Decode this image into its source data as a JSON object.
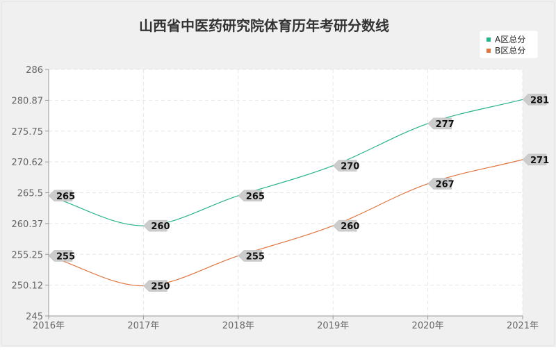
{
  "chart_data": {
    "type": "line",
    "title": "山西省中医药研究院体育历年考研分数线",
    "categories": [
      "2016年",
      "2017年",
      "2018年",
      "2019年",
      "2020年",
      "2021年"
    ],
    "series": [
      {
        "name": "A区总分",
        "values": [
          265,
          260,
          265,
          270,
          277,
          281
        ],
        "color": "#27b38c"
      },
      {
        "name": "B区总分",
        "values": [
          255,
          250,
          255,
          260,
          267,
          271
        ],
        "color": "#e0743f"
      }
    ],
    "yticks": [
      "245",
      "250.12",
      "255.25",
      "260.37",
      "265.5",
      "270.62",
      "275.75",
      "280.87",
      "286"
    ],
    "ylim": [
      245,
      286
    ],
    "grid": true,
    "legend_position": "top-right",
    "smooth": true
  }
}
